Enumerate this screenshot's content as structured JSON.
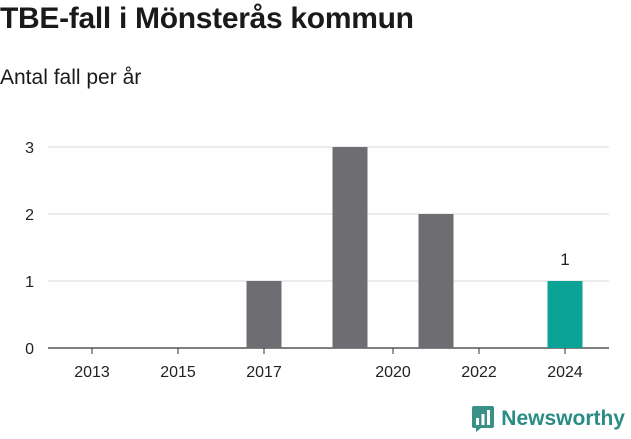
{
  "header": {
    "title": "TBE-fall i Mönsterås kommun",
    "subtitle": "Antal fall per år"
  },
  "chart_data": {
    "type": "bar",
    "title": "TBE-fall i Mönsterås kommun",
    "subtitle": "Antal fall per år",
    "xlabel": "",
    "ylabel": "",
    "categories": [
      2013,
      2014,
      2015,
      2016,
      2017,
      2018,
      2019,
      2020,
      2021,
      2022,
      2023,
      2024
    ],
    "values": [
      0,
      0,
      0,
      0,
      1,
      0,
      3,
      0,
      2,
      0,
      0,
      1
    ],
    "x_tick_labels": [
      "2013",
      "2015",
      "2017",
      "2020",
      "2022",
      "2024"
    ],
    "y_ticks": [
      0,
      1,
      2,
      3
    ],
    "ylim": [
      0,
      3
    ],
    "grid": true,
    "legend": "none",
    "bar_color": "#6e6d72",
    "highlight_color": "#0aa395",
    "highlight_category": 2024,
    "data_labels": [
      {
        "category": 2024,
        "text": "1"
      }
    ]
  },
  "brand": {
    "name": "Newsworthy",
    "icon": "newsworthy-logo-icon",
    "color": "#2a8c84"
  }
}
